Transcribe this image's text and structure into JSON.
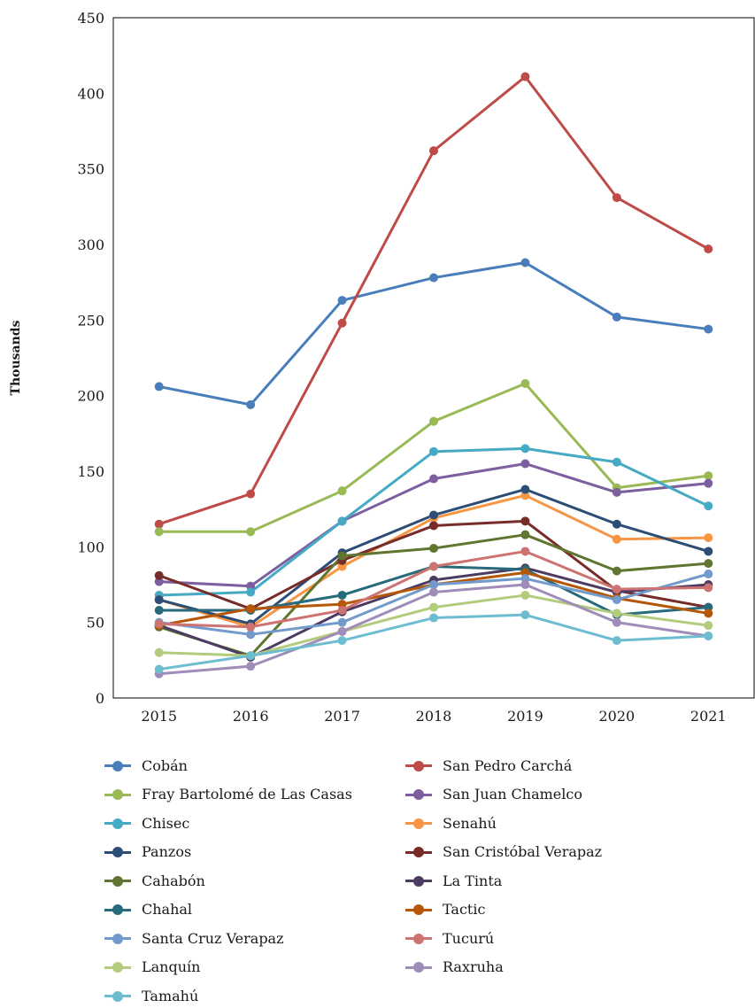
{
  "chart_data": {
    "type": "line",
    "title": "",
    "xlabel": "",
    "ylabel": "Thousands",
    "categories": [
      "2015",
      "2016",
      "2017",
      "2018",
      "2019",
      "2020",
      "2021"
    ],
    "ylim": [
      0,
      450
    ],
    "yticks": [
      "0",
      "50",
      "100",
      "150",
      "200",
      "250",
      "300",
      "350",
      "400",
      "450"
    ],
    "grid": false,
    "legend_position": "bottom",
    "series": [
      {
        "name": "Cobán",
        "color": "#4A7EBB",
        "values": [
          206,
          194,
          263,
          278,
          288,
          252,
          244
        ]
      },
      {
        "name": "San Pedro Carchá",
        "color": "#BE4B48",
        "values": [
          115,
          135,
          248,
          362,
          411,
          331,
          297
        ]
      },
      {
        "name": "Fray Bartolomé de Las Casas",
        "color": "#98B954",
        "values": [
          110,
          110,
          137,
          183,
          208,
          139,
          147
        ]
      },
      {
        "name": "San Juan Chamelco",
        "color": "#7D5FA0",
        "values": [
          77,
          74,
          117,
          145,
          155,
          136,
          142
        ]
      },
      {
        "name": "Chisec",
        "color": "#46AAC5",
        "values": [
          68,
          70,
          117,
          163,
          165,
          156,
          127
        ]
      },
      {
        "name": "Senahú",
        "color": "#F69544",
        "values": [
          65,
          47,
          87,
          119,
          134,
          105,
          106
        ]
      },
      {
        "name": "Panzos",
        "color": "#2C4D75",
        "values": [
          65,
          49,
          96,
          121,
          138,
          115,
          97
        ]
      },
      {
        "name": "San Cristóbal Verapaz",
        "color": "#772C2A",
        "values": [
          81,
          59,
          91,
          114,
          117,
          71,
          60
        ]
      },
      {
        "name": "Cahabón",
        "color": "#5F7530",
        "values": [
          47,
          28,
          94,
          99,
          108,
          84,
          89
        ]
      },
      {
        "name": "La Tinta",
        "color": "#4D3B62",
        "values": [
          48,
          27,
          57,
          78,
          86,
          70,
          75
        ]
      },
      {
        "name": "Chahal",
        "color": "#276A7C",
        "values": [
          58,
          58,
          68,
          87,
          85,
          55,
          60
        ]
      },
      {
        "name": "Tactic",
        "color": "#B65708",
        "values": [
          48,
          59,
          62,
          75,
          83,
          66,
          56
        ]
      },
      {
        "name": "Santa Cruz Verapaz",
        "color": "#729ACA",
        "values": [
          50,
          42,
          50,
          75,
          79,
          65,
          82
        ]
      },
      {
        "name": "Tucurú",
        "color": "#CD7371",
        "values": [
          49,
          47,
          58,
          87,
          97,
          72,
          73
        ]
      },
      {
        "name": "Lanquín",
        "color": "#B3CB7C",
        "values": [
          30,
          28,
          44,
          60,
          68,
          56,
          48
        ]
      },
      {
        "name": "Raxruha",
        "color": "#A08CB9",
        "values": [
          16,
          21,
          44,
          70,
          75,
          50,
          41
        ]
      },
      {
        "name": "Tamahú",
        "color": "#6DBDD1",
        "values": [
          19,
          28,
          38,
          53,
          55,
          38,
          41
        ]
      }
    ]
  }
}
